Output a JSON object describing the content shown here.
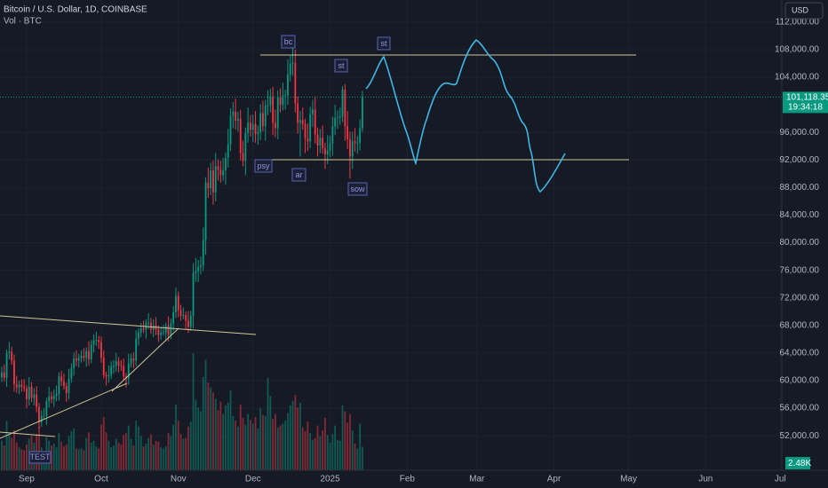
{
  "chart_data": {
    "type": "candlestick",
    "title": "Bitcoin / U.S. Dollar, 1D, COINBASE",
    "indicator": "Vol · BTC",
    "currency": "USD",
    "countdown": "19:34:18",
    "annotations": [
      "bc",
      "st",
      "st",
      "psy",
      "ar",
      "sow",
      "TEST"
    ],
    "colors": {
      "up": "#089981",
      "down": "#f23645"
    },
    "grid": true,
    "xlim": [
      -0.7,
      313.6
    ],
    "xticks": [
      {
        "value": 10,
        "label": "Sep"
      },
      {
        "value": 40,
        "label": "Oct"
      },
      {
        "value": 71,
        "label": "Nov"
      },
      {
        "value": 101,
        "label": "Dec"
      },
      {
        "value": 132,
        "label": "2025"
      },
      {
        "value": 163,
        "label": "Feb"
      },
      {
        "value": 191,
        "label": "Mar"
      },
      {
        "value": 222,
        "label": "Apr"
      },
      {
        "value": 252,
        "label": "May"
      },
      {
        "value": 283,
        "label": "Jun"
      },
      {
        "value": 313,
        "label": "Jul"
      }
    ],
    "ylim": [
      47000,
      115200
    ],
    "yticks": [
      {
        "value": 52000,
        "label": "52,000.00"
      },
      {
        "value": 56000,
        "label": "56,000.00"
      },
      {
        "value": 60000,
        "label": "60,000.00"
      },
      {
        "value": 64000,
        "label": "64,000.00"
      },
      {
        "value": 68000,
        "label": "68,000.00"
      },
      {
        "value": 72000,
        "label": "72,000.00"
      },
      {
        "value": 76000,
        "label": "76,000.00"
      },
      {
        "value": 80000,
        "label": "80,000.00"
      },
      {
        "value": 84000,
        "label": "84,000.00"
      },
      {
        "value": 88000,
        "label": "88,000.00"
      },
      {
        "value": 92000,
        "label": "92,000.00"
      },
      {
        "value": 96000,
        "label": "96,000.00"
      },
      {
        "value": 104000,
        "label": "104,000.00"
      },
      {
        "value": 108000,
        "label": "108,000.00"
      },
      {
        "value": 112000,
        "label": "112,000.00"
      }
    ],
    "last_price": {
      "value": 101118.35,
      "label": "101,118.35"
    },
    "last_volume": {
      "value": 2480,
      "label": "2.48K"
    },
    "open": [
      60500,
      61200,
      60400,
      64000,
      64200,
      62900,
      59500,
      59000,
      59400,
      59100,
      58900,
      57300,
      59100,
      57500,
      58000,
      56200,
      54000,
      54900,
      54900,
      57000,
      57700,
      57300,
      57800,
      58100,
      60600,
      59900,
      59200,
      58200,
      60300,
      61800,
      63200,
      62900,
      63300,
      63600,
      63300,
      64300,
      63100,
      65200,
      65800,
      65900,
      65600,
      63300,
      60800,
      60600,
      60800,
      62100,
      62100,
      62800,
      62200,
      62100,
      60600,
      60300,
      62500,
      63200,
      62900,
      66100,
      67000,
      67600,
      67400,
      68400,
      68400,
      67400,
      68000,
      67400,
      66600,
      67000,
      67000,
      67900,
      66600,
      68300,
      69900,
      72300,
      70200,
      69400,
      69500,
      68700,
      67800,
      69400,
      75600,
      75900,
      76500,
      76700,
      80400,
      88700,
      87900,
      90500,
      87300,
      91100,
      90600,
      89800,
      90500,
      92300,
      94300,
      98400,
      99000,
      97700,
      98000,
      93000,
      91900,
      95900,
      97400,
      96400,
      97200,
      95800,
      96000,
      98800,
      96900,
      99900,
      99900,
      101200,
      97400,
      96600,
      101100,
      100000,
      101400,
      101400,
      104400,
      106000,
      106100,
      100200,
      97400,
      97800,
      97200,
      95100,
      94700,
      98600,
      99300,
      95700,
      94100,
      95200,
      93700,
      92800,
      93400,
      94400,
      96900,
      98100,
      98200,
      98300,
      102200,
      96900,
      95000,
      92500,
      94700,
      94500,
      94500,
      96600
    ],
    "high": [
      62000,
      62300,
      64500,
      65600,
      64900,
      63800,
      60700,
      60000,
      60200,
      60200,
      59400,
      60500,
      59800,
      58900,
      59200,
      56800,
      55700,
      56000,
      57500,
      59100,
      58400,
      58700,
      59300,
      61200,
      61400,
      61000,
      59700,
      61700,
      62500,
      64100,
      64400,
      63900,
      64400,
      64700,
      64800,
      65700,
      65900,
      66700,
      67100,
      66500,
      66400,
      64400,
      61300,
      62200,
      62800,
      63000,
      64000,
      63400,
      63000,
      63200,
      61100,
      63900,
      63900,
      64100,
      67300,
      67600,
      68400,
      68700,
      68900,
      69800,
      69100,
      68900,
      69200,
      68000,
      67800,
      68100,
      68400,
      69300,
      69000,
      70800,
      73500,
      72900,
      71000,
      70600,
      70000,
      70100,
      70100,
      77000,
      77800,
      77500,
      78000,
      82200,
      89500,
      90900,
      91600,
      91900,
      93000,
      92100,
      91900,
      92300,
      93100,
      96500,
      99500,
      100400,
      100900,
      99000,
      99300,
      94800,
      96700,
      99600,
      98500,
      98600,
      99100,
      97000,
      100100,
      100600,
      100700,
      102100,
      102300,
      102600,
      99300,
      102100,
      102400,
      103200,
      102200,
      106600,
      107100,
      108300,
      108000,
      101200,
      99100,
      99600,
      98000,
      97300,
      99700,
      100700,
      101200,
      96700,
      96500,
      97000,
      94500,
      95600,
      95500,
      98300,
      100000,
      99200,
      99600,
      102700,
      103000,
      99100,
      96100,
      96100,
      96600,
      95500,
      97900,
      102000
    ],
    "low": [
      59800,
      59900,
      59100,
      63100,
      62300,
      58400,
      58200,
      58000,
      58400,
      58400,
      56000,
      56400,
      56900,
      56400,
      55400,
      53000,
      53300,
      54400,
      53600,
      56100,
      56700,
      56200,
      57000,
      57100,
      59200,
      58700,
      56900,
      57300,
      59700,
      60700,
      62100,
      61900,
      62600,
      62800,
      62000,
      62200,
      62500,
      64100,
      65000,
      64600,
      62600,
      60300,
      59300,
      59700,
      60200,
      61000,
      61300,
      61200,
      61400,
      60100,
      59000,
      59400,
      61900,
      61800,
      62100,
      65100,
      66300,
      66900,
      66100,
      67500,
      66800,
      66300,
      66600,
      65600,
      65900,
      66500,
      65700,
      65700,
      66000,
      67200,
      69100,
      69200,
      68700,
      68900,
      67400,
      66900,
      67200,
      67600,
      74300,
      74300,
      75400,
      75900,
      78300,
      86500,
      86900,
      85500,
      86000,
      89000,
      88700,
      89000,
      88400,
      90900,
      93300,
      96600,
      96400,
      96100,
      91900,
      91100,
      89800,
      94500,
      95400,
      94600,
      94500,
      94200,
      94900,
      96100,
      94800,
      98500,
      98900,
      95600,
      95300,
      95000,
      98900,
      99200,
      99300,
      100000,
      103400,
      104200,
      98900,
      95800,
      92500,
      96400,
      93000,
      93300,
      93700,
      96800,
      94400,
      92500,
      93000,
      92900,
      90700,
      91400,
      92400,
      92600,
      95600,
      96500,
      97100,
      97500,
      94800,
      93600,
      89300,
      90700,
      93200,
      92900,
      93400,
      96000
    ],
    "close": [
      61200,
      60400,
      64000,
      64200,
      62900,
      59500,
      59000,
      59400,
      59100,
      58900,
      57300,
      59100,
      57500,
      58000,
      56200,
      54000,
      54900,
      54900,
      57000,
      57700,
      57300,
      57800,
      58100,
      60600,
      59900,
      59200,
      58200,
      60300,
      61800,
      63200,
      62900,
      63300,
      63600,
      63300,
      64300,
      63100,
      65200,
      65800,
      65900,
      65600,
      63300,
      60800,
      60600,
      60800,
      62100,
      62100,
      62800,
      62200,
      62100,
      60600,
      60300,
      62500,
      63200,
      62900,
      66100,
      67000,
      67600,
      67400,
      68400,
      68400,
      67400,
      68000,
      67400,
      66600,
      67000,
      67000,
      67900,
      66600,
      68300,
      69900,
      72300,
      70200,
      69400,
      69500,
      68700,
      67800,
      69400,
      75600,
      75900,
      76500,
      76700,
      80400,
      88700,
      87900,
      90500,
      87300,
      91100,
      90600,
      89800,
      90500,
      92300,
      94300,
      98400,
      99000,
      97700,
      98000,
      93000,
      91900,
      95900,
      97400,
      96400,
      97200,
      95800,
      96000,
      98800,
      96900,
      99900,
      99900,
      101200,
      97400,
      96600,
      101100,
      100000,
      101400,
      101400,
      104400,
      106000,
      106100,
      100200,
      97400,
      97800,
      97200,
      95100,
      94700,
      98600,
      99300,
      95700,
      94100,
      95200,
      93700,
      92800,
      93400,
      94400,
      96900,
      98100,
      98200,
      98300,
      102200,
      96900,
      95000,
      92500,
      94700,
      94500,
      94500,
      96600,
      101118.35
    ],
    "volume": [
      3100,
      2600,
      5200,
      3800,
      3400,
      4200,
      2900,
      2400,
      2200,
      2100,
      2700,
      3300,
      3600,
      2900,
      3800,
      4600,
      2400,
      2000,
      3500,
      3100,
      2600,
      2800,
      2400,
      3900,
      3000,
      2500,
      2700,
      3600,
      4100,
      4400,
      2300,
      2200,
      2300,
      2100,
      3400,
      4000,
      2900,
      3100,
      2500,
      2300,
      4800,
      5600,
      4000,
      3100,
      2400,
      2600,
      3300,
      2900,
      2700,
      3700,
      3900,
      4700,
      3300,
      2600,
      5200,
      4600,
      3600,
      2500,
      2800,
      3400,
      3800,
      2700,
      3100,
      3000,
      2400,
      2300,
      2500,
      3900,
      3600,
      4800,
      6900,
      5200,
      3800,
      3300,
      3400,
      4600,
      5100,
      12300,
      7400,
      6600,
      6200,
      9800,
      11600,
      9200,
      8700,
      8200,
      7500,
      6300,
      7200,
      5900,
      6800,
      7100,
      8400,
      5700,
      5200,
      4600,
      6900,
      5500,
      4800,
      5900,
      5300,
      4900,
      5600,
      4400,
      6500,
      5800,
      5700,
      9700,
      7800,
      5400,
      5900,
      4500,
      4700,
      4900,
      5200,
      6000,
      6800,
      7300,
      7900,
      6600,
      7100,
      4500,
      4100,
      5100,
      3900,
      3200,
      3400,
      4700,
      3600,
      4200,
      5500,
      3700,
      2900,
      3800,
      4700,
      3200,
      3100,
      6800,
      6200,
      5000,
      5900,
      4200,
      2800,
      2300,
      4900,
      2480
    ]
  }
}
